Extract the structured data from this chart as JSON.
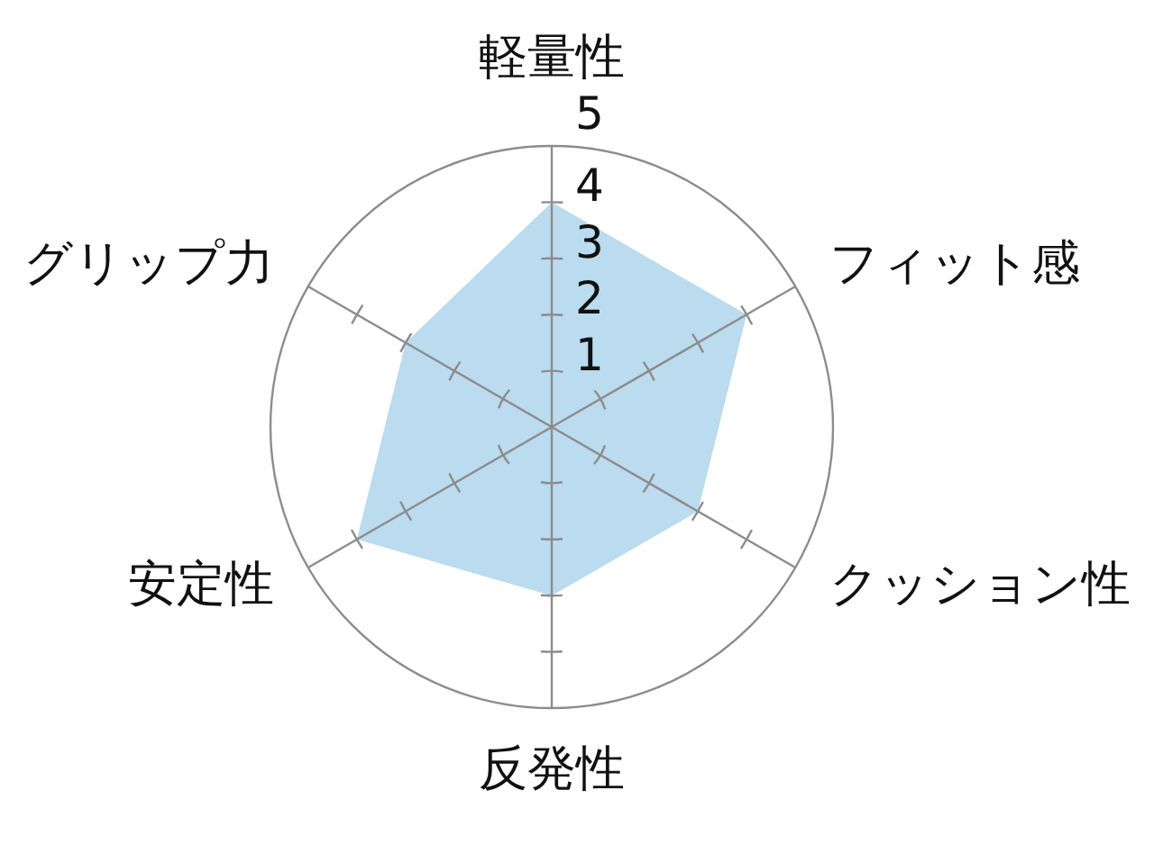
{
  "chart_data": {
    "type": "radar",
    "categories": [
      "軽量性",
      "フィット感",
      "クッション性",
      "反発性",
      "安定性",
      "グリップ力"
    ],
    "series": [
      {
        "color": "#bbdbee",
        "values": [
          4,
          4,
          3,
          3,
          4,
          3
        ]
      }
    ],
    "ylim": [
      0,
      5
    ],
    "yticks": [
      1,
      2,
      3,
      4,
      5
    ],
    "grid": true
  }
}
